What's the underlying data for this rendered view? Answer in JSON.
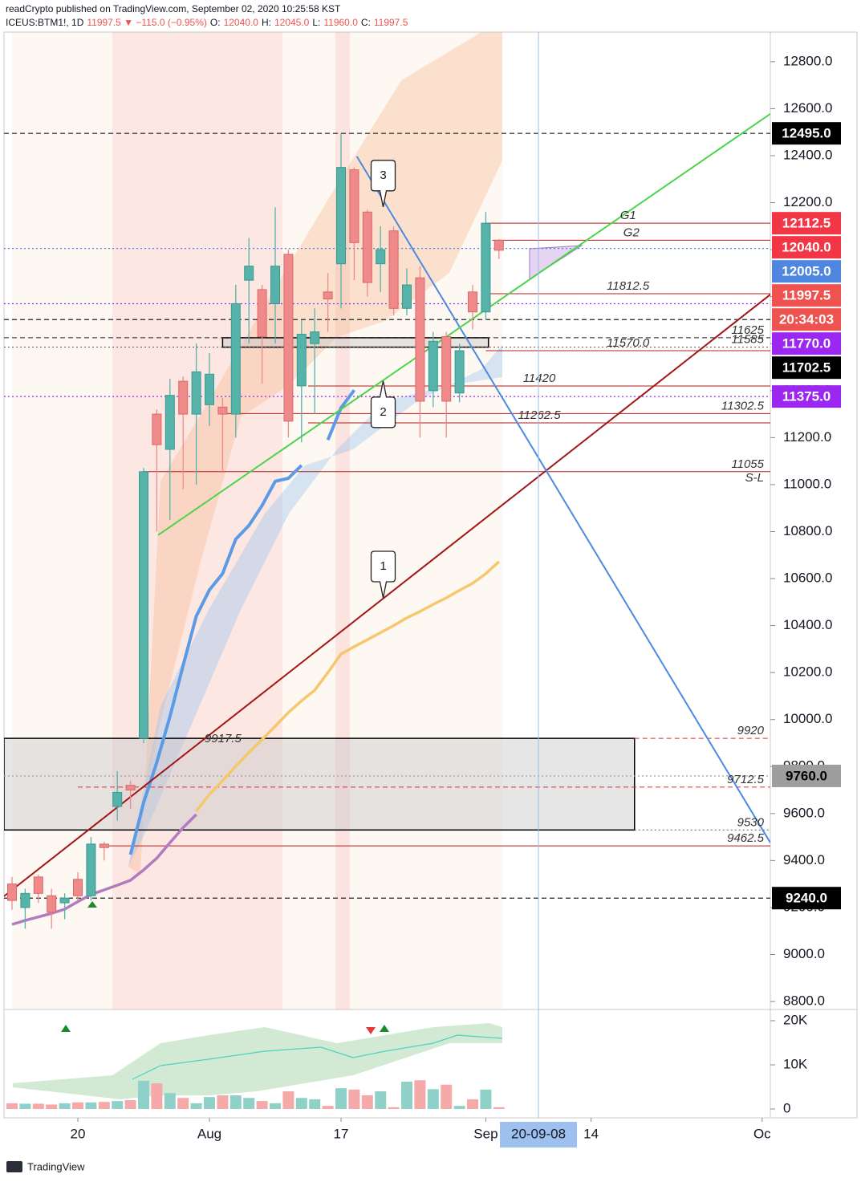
{
  "chart_data": {
    "type": "candlestick",
    "title": "readCrypto published on TradingView.com, September 02, 2020 10:25:58 KST",
    "symbol": "ICEUS:BTM1!, 1D",
    "quote": [
      {
        "text": "11997.5 ▼ −115.0 (−0.95%)",
        "color": "#ef5350"
      },
      {
        "text": "O:",
        "color": "#131722"
      },
      {
        "text": "12040.0",
        "color": "#ef5350"
      },
      {
        "text": "H:",
        "color": "#131722"
      },
      {
        "text": "12045.0",
        "color": "#ef5350"
      },
      {
        "text": "L:",
        "color": "#131722"
      },
      {
        "text": "11960.0",
        "color": "#ef5350"
      },
      {
        "text": "C:",
        "color": "#131722"
      },
      {
        "text": "11997.5",
        "color": "#ef5350"
      }
    ],
    "up_color": "#55b3aa",
    "down_color": "#f08a8a",
    "open": [
      9300,
      9200,
      9330,
      9250,
      9220,
      9320,
      9250,
      9470,
      9630,
      9720,
      9920,
      11300,
      11150,
      11440,
      11300,
      11340,
      11330,
      11300,
      11870,
      11830,
      11770,
      11980,
      11420,
      11600,
      11820,
      11940,
      12340,
      12160,
      11940,
      12080,
      11750,
      11880,
      11400,
      11630,
      11390,
      11820,
      11735,
      12040
    ],
    "high": [
      9330,
      9280,
      9340,
      9280,
      9260,
      9350,
      9500,
      9480,
      9780,
      9740,
      11070,
      11320,
      11450,
      11460,
      11600,
      11560,
      11370,
      11850,
      12050,
      11850,
      12180,
      12000,
      11700,
      11750,
      11900,
      12495,
      12350,
      12170,
      12100,
      12100,
      11920,
      11930,
      11650,
      11650,
      11600,
      11850,
      12160,
      12045
    ],
    "low": [
      9190,
      9110,
      9220,
      9110,
      9150,
      9230,
      9230,
      9400,
      9570,
      9620,
      9900,
      10800,
      10850,
      10980,
      11000,
      11250,
      11050,
      11200,
      11600,
      11430,
      11600,
      11200,
      11180,
      11300,
      11650,
      11750,
      11870,
      11800,
      11820,
      11720,
      11720,
      11200,
      11330,
      11200,
      11350,
      11660,
      11700,
      11960
    ],
    "close": [
      9230,
      9260,
      9260,
      9180,
      9240,
      9250,
      9470,
      9455,
      9690,
      9700,
      11055,
      11170,
      11380,
      11300,
      11480,
      11470,
      11300,
      11770,
      11930,
      11630,
      11930,
      11270,
      11640,
      11650,
      11790,
      12350,
      12030,
      11860,
      12000,
      11750,
      11850,
      11355,
      11610,
      11355,
      11570,
      11735,
      12112.5,
      11997.5
    ],
    "series": [
      {
        "color": "#b27bc0",
        "values": [
          9128,
          9145,
          9160,
          9175,
          9193,
          9225,
          9255,
          9275,
          9295,
          9316,
          9360,
          9410,
          9476,
          9540,
          9596,
          null,
          null,
          null,
          null,
          null,
          null,
          null,
          null,
          null,
          null,
          null,
          null,
          null,
          null,
          null,
          null,
          null,
          null,
          null,
          null,
          null,
          null,
          null
        ]
      },
      {
        "color": "#f6c86b",
        "values": [
          null,
          null,
          null,
          null,
          null,
          null,
          null,
          null,
          null,
          null,
          null,
          null,
          null,
          null,
          9610,
          9682,
          9740,
          9801,
          9860,
          9915,
          9972,
          10030,
          10080,
          10125,
          10200,
          10279,
          10310,
          10340,
          10370,
          10400,
          10433,
          10460,
          10490,
          10518,
          10550,
          10580,
          10621,
          10672
        ]
      },
      {
        "color": "#5b9be6",
        "values": [
          null,
          null,
          null,
          null,
          null,
          null,
          null,
          null,
          null,
          9425,
          9647,
          9818,
          10013,
          10230,
          10440,
          10552,
          10621,
          10768,
          10826,
          10911,
          11014,
          11027,
          11082,
          null,
          11190,
          11327,
          11402,
          null,
          null,
          null,
          null,
          null,
          null,
          null,
          null,
          null,
          null,
          null
        ]
      }
    ],
    "xlim": [
      -0.61,
      57.62
    ],
    "ylim": [
      8766,
      12926
    ],
    "xticks": [
      {
        "value": 5,
        "label": "20"
      },
      {
        "value": 15,
        "label": "Aug"
      },
      {
        "value": 25,
        "label": "17"
      },
      {
        "value": 36,
        "label": "Sep"
      },
      {
        "value": 44,
        "label": "14"
      },
      {
        "value": 57,
        "label": "Oc"
      }
    ],
    "yticks": [
      {
        "value": 8800,
        "label": "8800.0"
      },
      {
        "value": 9000,
        "label": "9000.0"
      },
      {
        "value": 9200,
        "label": "9200.0"
      },
      {
        "value": 9400,
        "label": "9400.0"
      },
      {
        "value": 9600,
        "label": "9600.0"
      },
      {
        "value": 9800,
        "label": "9800.0"
      },
      {
        "value": 10000,
        "label": "10000.0"
      },
      {
        "value": 10200,
        "label": "10200.0"
      },
      {
        "value": 10400,
        "label": "10400.0"
      },
      {
        "value": 10600,
        "label": "10600.0"
      },
      {
        "value": 10800,
        "label": "10800.0"
      },
      {
        "value": 11000,
        "label": "11000.0"
      },
      {
        "value": 11200,
        "label": "11200.0"
      },
      {
        "value": 11400,
        "label": "11400.0"
      },
      {
        "value": 11600,
        "label": "11600.0"
      },
      {
        "value": 11800,
        "label": "11800.0"
      },
      {
        "value": 12000,
        "label": "12000.0"
      },
      {
        "value": 12200,
        "label": "12200.0"
      },
      {
        "value": 12400,
        "label": "12400.0"
      },
      {
        "value": 12600,
        "label": "12600.0"
      },
      {
        "value": 12800,
        "label": "12800.0"
      }
    ],
    "grid": false,
    "volume": {
      "up_color": "#8fd1c8",
      "down_color": "#f5a9a9",
      "values": [
        1300,
        1200,
        1200,
        1000,
        1300,
        1500,
        1500,
        1600,
        1800,
        2000,
        6400,
        5800,
        3600,
        2500,
        1300,
        2700,
        3100,
        3100,
        2500,
        1800,
        1300,
        4000,
        2500,
        2200,
        700,
        4700,
        4400,
        3100,
        4000,
        400,
        6200,
        6500,
        4500,
        5500,
        700,
        2200,
        4400,
        400
      ],
      "ylim": [
        -2000,
        22182
      ],
      "yticks": [
        0,
        {
          "value": 10000,
          "label": "10K"
        },
        {
          "value": 20000,
          "label": "20K"
        }
      ]
    },
    "crosshair": {
      "value": 40,
      "label": "20-09-08"
    },
    "zones": [
      {
        "from": 9530,
        "to": 9920,
        "start": -0.61,
        "end": 47.3,
        "label": "9917.5"
      },
      {
        "from": 11585,
        "to": 11625,
        "start": 16,
        "end": 36.2
      }
    ],
    "levels": [
      {
        "value": 12112.5,
        "label": "G1",
        "color": "#b71c1c",
        "style": "solid",
        "start": 36,
        "label_at": "center"
      },
      {
        "value": 12040,
        "label": "G2",
        "color": "#b71c1c",
        "style": "solid",
        "start": 36.5,
        "label_at": "center"
      },
      {
        "value": 11812.5,
        "label": "11812.5",
        "color": "#b71c1c",
        "style": "solid",
        "start": 36,
        "label_at": "center"
      },
      {
        "value": 11625,
        "label": "11625",
        "color": "#222222",
        "style": "dashed",
        "start": -0.61,
        "label_at": "end"
      },
      {
        "value": 11585,
        "label": "11585",
        "color": "#555555",
        "style": "dotted",
        "start": -0.61,
        "label_at": "end"
      },
      {
        "value": 11570,
        "label": "11570.0",
        "color": "#b71c1c",
        "style": "solid",
        "start": 36,
        "label_at": "center"
      },
      {
        "value": 11420,
        "label": "11420",
        "color": "#b71c1c",
        "style": "solid",
        "start": 22.5,
        "label_at": "center"
      },
      {
        "value": 11302.5,
        "label": "11302.5",
        "color": "#b71c1c",
        "style": "solid",
        "start": 16,
        "label_at": "end"
      },
      {
        "value": 11262.5,
        "label": "11262.5",
        "color": "#b71c1c",
        "style": "solid",
        "start": 22.5,
        "label_at": "center"
      },
      {
        "value": 11055,
        "label": "11055",
        "note": "S-L",
        "color": "#b71c1c",
        "style": "solid",
        "start": 10,
        "label_at": "end"
      },
      {
        "value": 9920,
        "label": "9920",
        "color": "#d32f2f",
        "style": "dashed",
        "start": 47.3,
        "label_at": "end"
      },
      {
        "value": 9712.5,
        "label": "9712.5",
        "color": "#d32f2f",
        "style": "dashed",
        "start": 5,
        "label_at": "end"
      },
      {
        "value": 9530,
        "label": "9530",
        "color": "#555555",
        "style": "dotted",
        "start": 47.3,
        "label_at": "end"
      },
      {
        "value": 9462.5,
        "label": "9462.5",
        "color": "#b71c1c",
        "style": "solid",
        "start": 7,
        "label_at": "end"
      }
    ],
    "trendlines": [
      {
        "color": "#a31515",
        "x": [
          -0.61,
          57.62
        ],
        "y": [
          9248,
          11809
        ]
      },
      {
        "color": "#4a8ae0",
        "x": [
          26.2,
          57.62
        ],
        "y": [
          12397,
          9476
        ]
      },
      {
        "color": "#4cd44c",
        "x": [
          11.1,
          57.62
        ],
        "y": [
          10785,
          12578
        ]
      }
    ],
    "badges": [
      {
        "value": 12495,
        "label": "12495.0",
        "color": "#000000",
        "text_color": "#ffffff",
        "line": "dashed"
      },
      {
        "value": 12112.5,
        "label": "12112.5",
        "color": "#f23645",
        "text_color": "#ffffff"
      },
      {
        "value": 12040,
        "label": "12040.0",
        "color": "#f23645",
        "text_color": "#ffffff"
      },
      {
        "value": 12005,
        "label": "12005.0",
        "color": "#4f86e0",
        "text_color": "#ffffff",
        "line": "dotted"
      },
      {
        "value": 11997.5,
        "label": "11997.5",
        "color": "#ef5350",
        "text_color": "#ffffff"
      },
      {
        "label": "20:34:03",
        "color": "#ef5350",
        "text_color": "#ffffff"
      },
      {
        "value": 11770,
        "label": "11770.0",
        "color": "#9c27f0",
        "text_color": "#ffffff",
        "line": "dotted"
      },
      {
        "value": 11702.5,
        "label": "11702.5",
        "color": "#000000",
        "text_color": "#ffffff",
        "line": "dashed"
      },
      {
        "value": 11375,
        "label": "11375.0",
        "color": "#9c27f0",
        "text_color": "#ffffff",
        "line": "dotted"
      },
      {
        "value": 9760,
        "label": "9760.0",
        "color": "#9e9e9e",
        "text_color": "#000000",
        "line": "dotted"
      },
      {
        "value": 9240,
        "label": "9240.0",
        "color": "#000000",
        "text_color": "#ffffff",
        "line": "dashed"
      }
    ],
    "annotations": [
      {
        "label": "1",
        "x": 28.2,
        "y": 10518,
        "pointer": "down"
      },
      {
        "label": "2",
        "x": 28.2,
        "y": 11441,
        "pointer": "up"
      },
      {
        "label": "3",
        "x": 28.2,
        "y": 12182,
        "pointer": "down"
      }
    ],
    "watermark": "TradingView"
  }
}
